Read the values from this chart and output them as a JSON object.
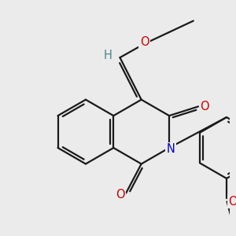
{
  "background_color": "#ebebeb",
  "bond_color": "#1a1a1a",
  "bond_width": 1.6,
  "atom_colors": {
    "O": "#cc0000",
    "N": "#0000cc",
    "H": "#4a8888",
    "C": "#1a1a1a"
  }
}
